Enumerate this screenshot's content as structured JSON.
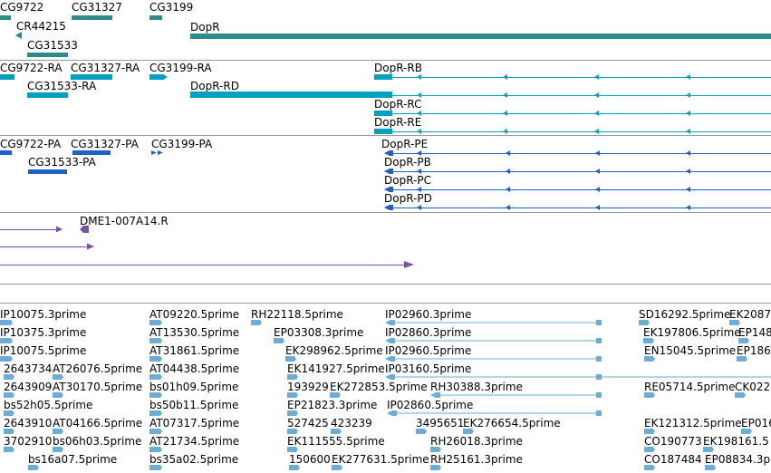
{
  "colors": {
    "gene": "#2e8b8b",
    "transcript": "#00a0c0",
    "protein": "#1f5fc8",
    "clone": "#7a4fa8",
    "est": "#6aaed8",
    "separator": "#9a9a9a"
  },
  "genes": {
    "labels": [
      "CG9722",
      "CG31327",
      "CG3199",
      "CR44215",
      "CG31533",
      "DopR"
    ]
  },
  "transcripts": {
    "labels": [
      "CG9722-RA",
      "CG31327-RA",
      "CG3199-RA",
      "DopR-RB",
      "CG31533-RA",
      "DopR-RD",
      "DopR-RC",
      "DopR-RE"
    ]
  },
  "proteins": {
    "labels": [
      "CG9722-PA",
      "CG31327-PA",
      "CG3199-PA",
      "DopR-PE",
      "CG31533-PA",
      "DopR-PB",
      "DopR-PC",
      "DopR-PD"
    ]
  },
  "clones": {
    "labels": [
      "DME1-007A14.R"
    ]
  },
  "ests": {
    "rows": [
      [
        "IP10075.3prime",
        "AT09220.5prime",
        "RH22118.5prime",
        "IP02960.3prime",
        "SD16292.5prime",
        "EK2087"
      ],
      [
        "IP10375.3prime",
        "AT13530.5prime",
        "EP03308.3prime",
        "IP02860.3prime",
        "EK197806.5prime",
        "EP148"
      ],
      [
        "IP10075.5prime",
        "AT31861.5prime",
        "EK298962.5prime",
        "IP02960.5prime",
        "EN15045.5prime",
        "EP186"
      ],
      [
        "2643734",
        "AT26076.5prime",
        "AT04438.5prime",
        "EK141927.5prime",
        "IP03160.5prime"
      ],
      [
        "2643909",
        "AT30170.5prime",
        "bs01h09.5prime",
        "193929",
        "EK272853.5prime",
        "RH30388.3prime",
        "RE05714.5prime",
        "CK022"
      ],
      [
        "bs52h05.5prime",
        "bs50b11.5prime",
        "EP21823.3prime",
        "IP02860.5prime"
      ],
      [
        "2643910",
        "AT04166.5prime",
        "AT07317.5prime",
        "527425",
        "423239",
        "3495651",
        "EK276654.5prime",
        "EK121312.5prime",
        "EP016"
      ],
      [
        "3702910",
        "bs06h03.5prime",
        "AT21734.5prime",
        "EK111555.5prime",
        "RH26018.3prime",
        "CO190773",
        "EK198161.5"
      ],
      [
        "bs16a07.5prime",
        "bs35a02.5prime",
        "150600",
        "EK277631.5prime",
        "RH25161.3prime",
        "CO187484",
        "EP08834.3pri"
      ]
    ]
  }
}
